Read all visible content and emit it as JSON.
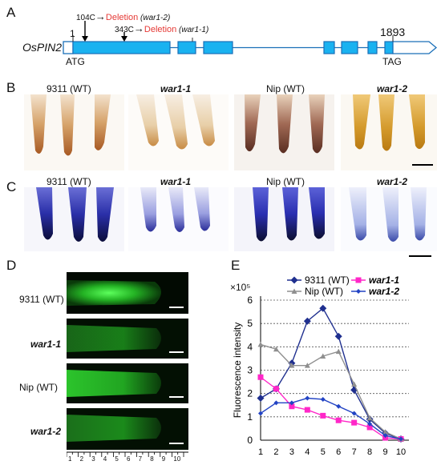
{
  "panel_a": {
    "letter": "A",
    "gene_name": "OsPIN2",
    "pos_start": "1",
    "pos_end": "1893",
    "start_codon": "ATG",
    "stop_codon": "TAG",
    "mut1": {
      "pos": "104C",
      "arrow": "→",
      "effect": "Deletion",
      "allele": "(war1-2)"
    },
    "mut2": {
      "pos": "343C",
      "arrow": "→",
      "effect": "Deletion",
      "allele": "(war1-1)"
    },
    "colors": {
      "exon_fill": "#1ab2f0",
      "exon_stroke": "#1a6fb8",
      "deletion_text": "#e53935"
    }
  },
  "panel_b": {
    "letter": "B",
    "labels": [
      "9311 (WT)",
      "war1-1",
      "Nip (WT)",
      "war1-2"
    ]
  },
  "panel_c": {
    "letter": "C",
    "labels": [
      "9311 (WT)",
      "war1-1",
      "Nip (WT)",
      "war1-2"
    ]
  },
  "panel_d": {
    "letter": "D",
    "labels": [
      "9311 (WT)",
      "war1-1",
      "Nip (WT)",
      "war1-2"
    ],
    "ruler_ticks": [
      "1",
      "2",
      "3",
      "4",
      "5",
      "6",
      "7",
      "8",
      "9",
      "10"
    ]
  },
  "panel_e": {
    "letter": "E",
    "exponent_label": "×10⁵"
  },
  "chart_data": {
    "type": "line",
    "title": "",
    "xlabel": "",
    "ylabel": "Fluorescence intensity",
    "x": [
      1,
      2,
      3,
      4,
      5,
      6,
      7,
      8,
      9,
      10
    ],
    "ylim": [
      0,
      6
    ],
    "yticks": [
      0,
      1,
      2,
      3,
      4,
      5,
      6
    ],
    "grid": "horizontal dotted",
    "legend_position": "top",
    "series": [
      {
        "name": "9311 (WT)",
        "color": "#1f2f8f",
        "marker": "diamond",
        "values": [
          1.8,
          2.2,
          3.3,
          5.1,
          5.65,
          4.45,
          2.15,
          0.9,
          0.3,
          0.05
        ]
      },
      {
        "name": "war1-1",
        "color": "#ff27c8",
        "marker": "square",
        "values": [
          2.7,
          2.2,
          1.45,
          1.3,
          1.05,
          0.85,
          0.75,
          0.55,
          0.1,
          0.05
        ]
      },
      {
        "name": "Nip (WT)",
        "color": "#8f8f8f",
        "marker": "triangle",
        "values": [
          4.1,
          3.9,
          3.2,
          3.2,
          3.6,
          3.8,
          2.4,
          0.95,
          0.35,
          0.05
        ]
      },
      {
        "name": "war1-2",
        "color": "#2243c4",
        "marker": "diamond-small",
        "values": [
          1.15,
          1.6,
          1.6,
          1.8,
          1.75,
          1.45,
          1.15,
          0.7,
          0.2,
          0.05
        ]
      }
    ]
  }
}
